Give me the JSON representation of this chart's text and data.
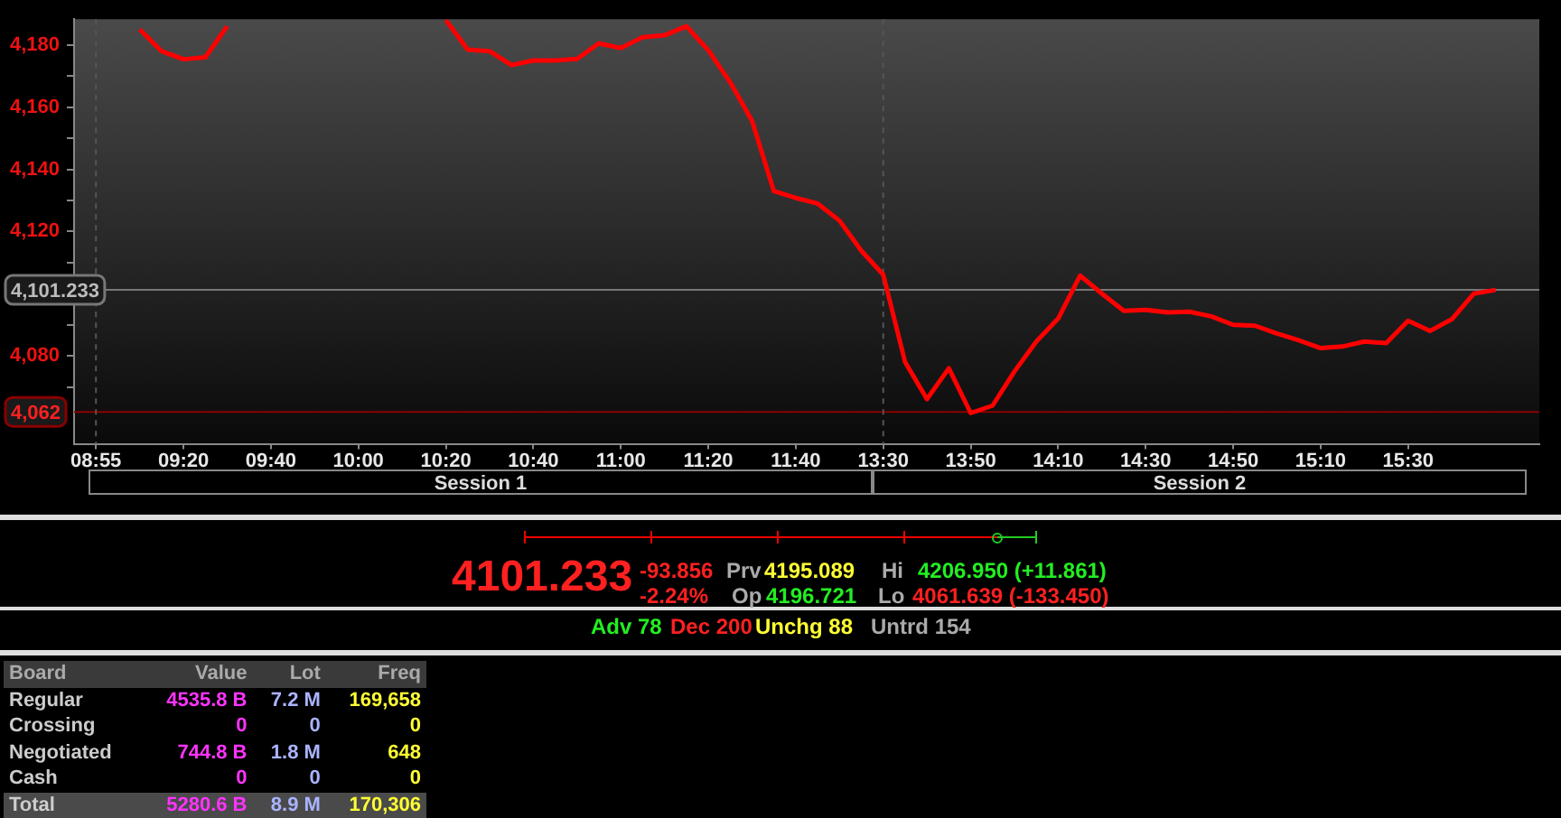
{
  "chart_data": [
    {
      "type": "line",
      "categories": [
        null,
        "08:55",
        null,
        null,
        null,
        "09:20",
        null,
        null,
        null,
        "09:40",
        null,
        null,
        null,
        "10:00",
        null,
        null,
        null,
        "10:20",
        null,
        null,
        null,
        "10:40",
        null,
        null,
        null,
        "11:00",
        null,
        null,
        null,
        "11:20",
        null,
        null,
        null,
        "11:40",
        null,
        null,
        null,
        "13:30",
        null,
        null,
        null,
        "13:50",
        null,
        null,
        null,
        "14:10",
        null,
        null,
        null,
        "14:30",
        null,
        null,
        null,
        "14:50",
        null,
        null,
        null,
        "15:10",
        null,
        null,
        null,
        "15:30",
        null,
        null,
        null,
        null,
        null,
        null
      ],
      "series": [
        {
          "color": "#ff0000",
          "values": [
            null,
            null,
            null,
            4185,
            4178,
            4175.4,
            4176,
            4186,
            null,
            null,
            null,
            null,
            null,
            null,
            null,
            null,
            null,
            4188,
            4178.5,
            4178,
            4173.5,
            4175,
            4175,
            4175.5,
            4180.5,
            4179,
            4182.5,
            4183.1,
            4186,
            4178.3,
            4168,
            4155.6,
            4133,
            4130.8,
            4129,
            4123.5,
            4113.8,
            4106.1,
            4078,
            4066.1,
            4076,
            4061.6,
            4064,
            4075,
            4084.6,
            4092,
            4105.8,
            4100,
            4094.5,
            4094.8,
            4094,
            4094.2,
            4092.7,
            4090,
            4089.7,
            4087.2,
            4085,
            4082.5,
            4083,
            4084.6,
            4084.1,
            4091.3,
            4088,
            4091.8,
            4100,
            4101.2,
            null,
            null
          ]
        }
      ],
      "ylim": [
        4051.7,
        4188.3
      ],
      "yticks": [
        {
          "value": 4070,
          "label": null
        },
        {
          "value": 4080,
          "label": "4,080"
        },
        {
          "value": 4090,
          "label": null
        },
        {
          "value": 4110,
          "label": null
        },
        {
          "value": 4120,
          "label": "4,120"
        },
        {
          "value": 4130,
          "label": null
        },
        {
          "value": 4140,
          "label": "4,140"
        },
        {
          "value": 4150,
          "label": null
        },
        {
          "value": 4160,
          "label": "4,160"
        },
        {
          "value": 4170,
          "label": null
        },
        {
          "value": 4180,
          "label": "4,180"
        }
      ],
      "ref_lines": [
        {
          "axis": "y",
          "value": 4101.233,
          "label": "4,101.233",
          "color": "#777777"
        },
        {
          "axis": "y",
          "value": 4062,
          "label": "4,062",
          "color": "#8b0000"
        },
        {
          "axis": "x",
          "value": "08:55",
          "color": "#555555",
          "line_style": "dashed"
        },
        {
          "axis": "x",
          "value": "13:30",
          "color": "#555555",
          "line_style": "dashed"
        }
      ],
      "annotations": [
        "Session 1",
        "Session 2"
      ]
    },
    {
      "type": "other",
      "annotations": [
        "4101.233",
        "-93.856",
        "-2.24%",
        "Prv",
        "4195.089",
        "Op",
        "4196.721",
        "Hi",
        "4206.950 (+11.861)",
        "Lo",
        "4061.639 (-133.450)",
        "Adv 78",
        "Dec 200",
        "Unchg 88",
        "Untrd 154",
        "Board",
        "Value",
        "Lot",
        "Freq",
        "Regular",
        "4535.8 B",
        "7.2 M",
        "169,658",
        "Crossing",
        "0",
        "0",
        "0",
        "Negotiated",
        "744.8 B",
        "1.8 M",
        "648",
        "Cash",
        "0",
        "0",
        "0",
        "Total",
        "5280.6 B",
        "8.9 M",
        "170,306"
      ]
    }
  ]
}
